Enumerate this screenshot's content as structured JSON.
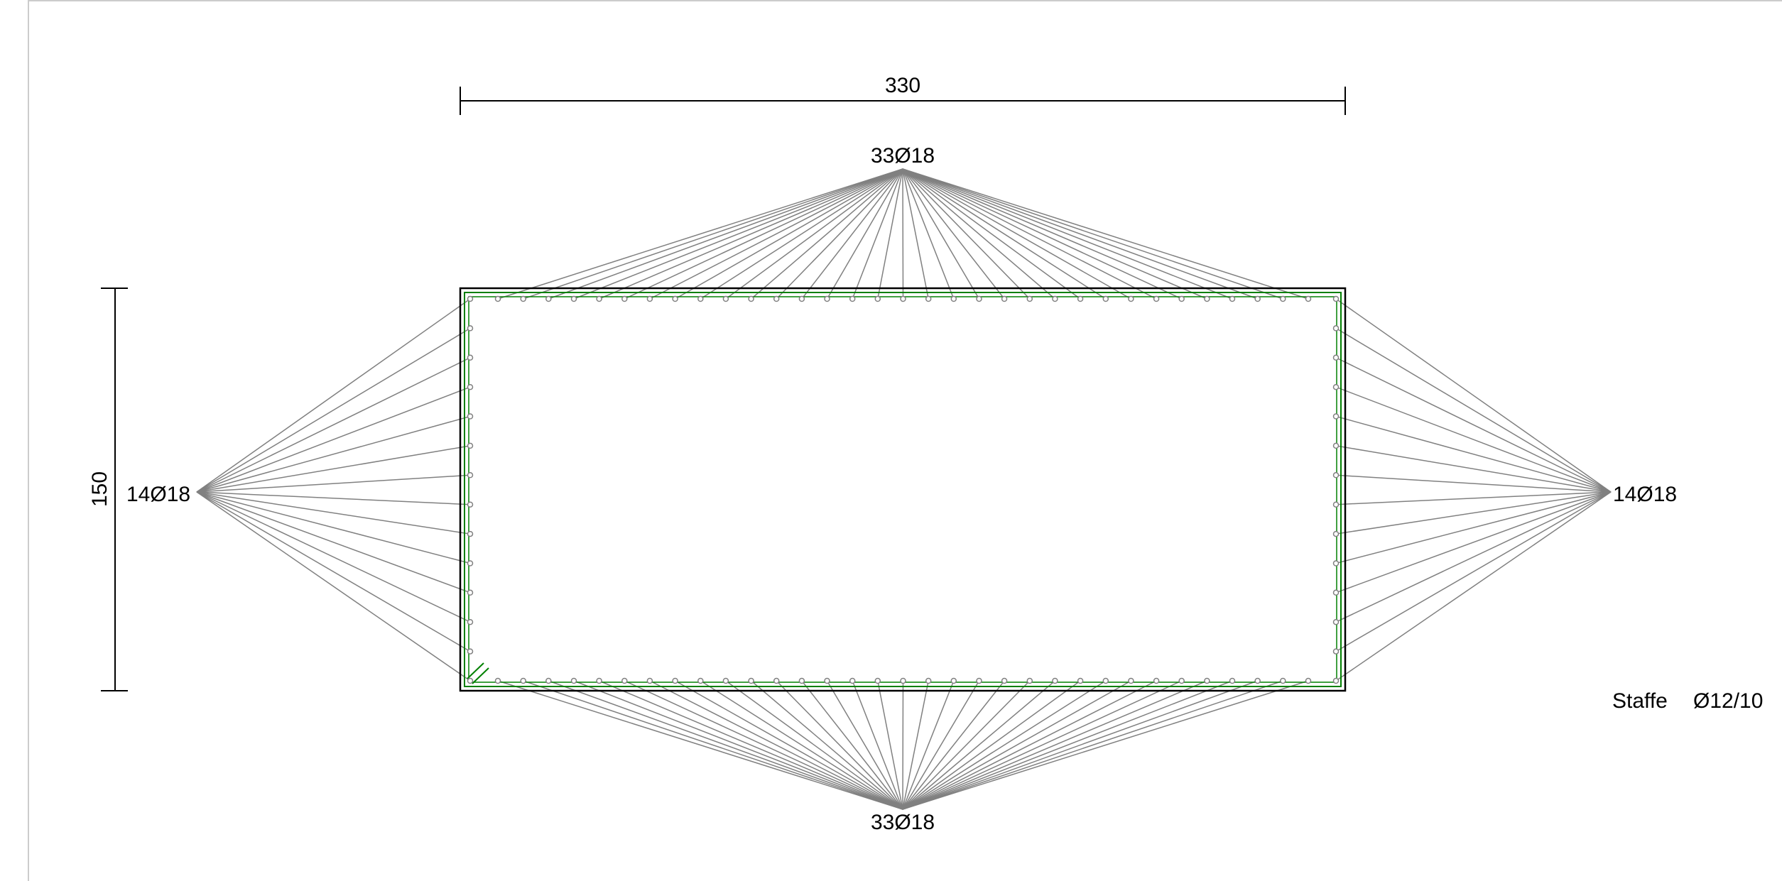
{
  "section": {
    "width_label": "330",
    "height_label": "150",
    "top_bars_label": "33Ø18",
    "bottom_bars_label": "33Ø18",
    "left_bars_label": "14Ø18",
    "right_bars_label": "14Ø18",
    "top_bar_count": 33,
    "bottom_bar_count": 33,
    "left_bar_count": 14,
    "right_bar_count": 14
  },
  "stirrup": {
    "label": "Staffe",
    "spec": "Ø12/10"
  },
  "colors": {
    "outline": "#000000",
    "stirrup": "#008000",
    "leader": "#808080",
    "bar": "#808080"
  }
}
